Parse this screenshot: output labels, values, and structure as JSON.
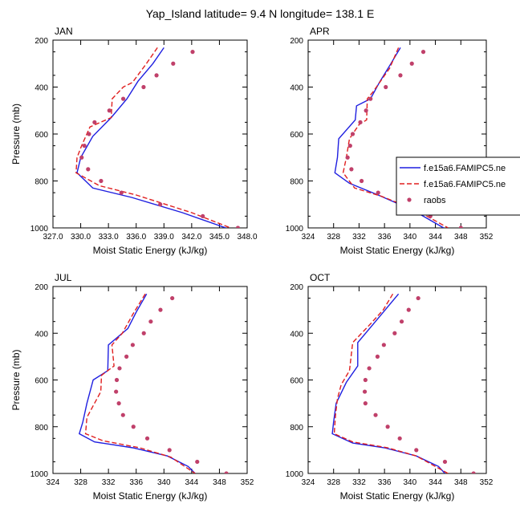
{
  "figure_title": "Yap_Island  latitude= 9.4 N longitude= 138.1 E",
  "legend": [
    {
      "label": "f.e15a6.FAMIPC5.ne",
      "color": "#1f1fe0",
      "style": "solid"
    },
    {
      "label": "f.e15a6.FAMIPC5.ne",
      "color": "#e01f1f",
      "style": "dashed"
    },
    {
      "label": "raobs",
      "color": "#c0406a",
      "style": "dots"
    }
  ],
  "colors": {
    "model1": "#1f1fe0",
    "model2": "#e01f1f",
    "obs": "#c0406a"
  },
  "chart_data": [
    {
      "type": "line",
      "title": "JAN",
      "xlabel": "Moist Static Energy (kJ/kg)",
      "ylabel": "Pressure (mb)",
      "xlim": [
        327,
        348
      ],
      "ylim": [
        200,
        1000
      ],
      "y_inverted": true,
      "xticks": [
        327,
        330,
        333,
        336,
        339,
        342,
        345,
        348
      ],
      "xtick_labels": [
        "327.0",
        "330.0",
        "333.0",
        "336.0",
        "339.0",
        "342.0",
        "345.0",
        "348.0"
      ],
      "yticks": [
        200,
        400,
        600,
        800,
        1000
      ],
      "ytick_labels": [
        "200",
        "400",
        "600",
        "800",
        "1000"
      ],
      "series": [
        {
          "name": "f.e15a6.FAMIPC5.ne",
          "style": "solid",
          "color": "#1f1fe0",
          "points": [
            [
              339.0,
              232
            ],
            [
              337.8,
              300
            ],
            [
              336.2,
              375
            ],
            [
              335.0,
              450
            ],
            [
              333.3,
              530
            ],
            [
              331.3,
              610
            ],
            [
              330.0,
              700
            ],
            [
              329.6,
              765
            ],
            [
              331.3,
              830
            ],
            [
              335.5,
              870
            ],
            [
              341.0,
              935
            ],
            [
              345.7,
              1000
            ]
          ]
        },
        {
          "name": "f.e15a6.FAMIPC5.ne",
          "style": "dashed",
          "color": "#e01f1f",
          "points": [
            [
              338.3,
              232
            ],
            [
              337.1,
              300
            ],
            [
              335.6,
              380
            ],
            [
              334.6,
              400
            ],
            [
              333.4,
              450
            ],
            [
              333.3,
              530
            ],
            [
              331.0,
              570
            ],
            [
              330.1,
              650
            ],
            [
              329.6,
              700
            ],
            [
              329.5,
              765
            ],
            [
              332.0,
              820
            ],
            [
              336.0,
              860
            ],
            [
              342.0,
              935
            ],
            [
              346.2,
              1000
            ]
          ]
        },
        {
          "name": "raobs",
          "style": "dots",
          "color": "#c0406a",
          "points": [
            [
              342.1,
              250
            ],
            [
              340.0,
              300
            ],
            [
              338.2,
              350
            ],
            [
              336.8,
              400
            ],
            [
              334.6,
              450
            ],
            [
              333.1,
              500
            ],
            [
              331.5,
              550
            ],
            [
              330.9,
              600
            ],
            [
              330.4,
              650
            ],
            [
              330.1,
              700
            ],
            [
              330.8,
              750
            ],
            [
              332.2,
              800
            ],
            [
              334.4,
              850
            ],
            [
              338.6,
              900
            ],
            [
              343.2,
              950
            ],
            [
              347.0,
              1000
            ]
          ]
        }
      ]
    },
    {
      "type": "line",
      "title": "APR",
      "xlabel": "Moist Static Energy (kJ/kg)",
      "ylabel": "Pressure (mb)",
      "xlim": [
        324,
        352
      ],
      "ylim": [
        200,
        1000
      ],
      "y_inverted": true,
      "xticks": [
        324,
        328,
        332,
        336,
        340,
        344,
        348,
        352
      ],
      "xtick_labels": [
        "324",
        "328",
        "332",
        "336",
        "340",
        "344",
        "348",
        "352"
      ],
      "yticks": [
        200,
        400,
        600,
        800,
        1000
      ],
      "ytick_labels": [
        "200",
        "400",
        "600",
        "800",
        "1000"
      ],
      "series": [
        {
          "name": "f.e15a6.FAMIPC5.ne",
          "style": "solid",
          "color": "#1f1fe0",
          "points": [
            [
              338.5,
              232
            ],
            [
              337.0,
              300
            ],
            [
              335.2,
              380
            ],
            [
              333.8,
              450
            ],
            [
              331.6,
              480
            ],
            [
              331.4,
              540
            ],
            [
              328.8,
              620
            ],
            [
              328.6,
              700
            ],
            [
              328.2,
              765
            ],
            [
              330.5,
              810
            ],
            [
              335.0,
              860
            ],
            [
              340.5,
              925
            ],
            [
              345.3,
              1000
            ]
          ]
        },
        {
          "name": "f.e15a6.FAMIPC5.ne",
          "style": "dashed",
          "color": "#e01f1f",
          "points": [
            [
              338.2,
              232
            ],
            [
              336.8,
              320
            ],
            [
              334.2,
              420
            ],
            [
              333.3,
              450
            ],
            [
              333.2,
              540
            ],
            [
              332.0,
              560
            ],
            [
              330.5,
              620
            ],
            [
              330.0,
              700
            ],
            [
              329.5,
              765
            ],
            [
              331.3,
              830
            ],
            [
              335.5,
              865
            ],
            [
              341.0,
              925
            ],
            [
              346.0,
              1000
            ]
          ]
        },
        {
          "name": "raobs",
          "style": "dots",
          "color": "#c0406a",
          "points": [
            [
              342.1,
              250
            ],
            [
              340.3,
              300
            ],
            [
              338.5,
              350
            ],
            [
              336.2,
              400
            ],
            [
              333.8,
              450
            ],
            [
              333.1,
              500
            ],
            [
              332.2,
              550
            ],
            [
              331.0,
              600
            ],
            [
              330.6,
              650
            ],
            [
              330.2,
              700
            ],
            [
              330.8,
              750
            ],
            [
              332.4,
              800
            ],
            [
              335.0,
              850
            ],
            [
              338.6,
              900
            ],
            [
              343.2,
              950
            ],
            [
              348.0,
              1000
            ]
          ]
        }
      ]
    },
    {
      "type": "line",
      "title": "JUL",
      "xlabel": "Moist Static Energy (kJ/kg)",
      "ylabel": "Pressure (mb)",
      "xlim": [
        324,
        352
      ],
      "ylim": [
        200,
        1000
      ],
      "y_inverted": true,
      "xticks": [
        324,
        328,
        332,
        336,
        340,
        344,
        348,
        352
      ],
      "xtick_labels": [
        "324",
        "328",
        "332",
        "336",
        "340",
        "344",
        "348",
        "352"
      ],
      "yticks": [
        200,
        400,
        600,
        800,
        1000
      ],
      "ytick_labels": [
        "200",
        "400",
        "600",
        "800",
        "1000"
      ],
      "series": [
        {
          "name": "f.e15a6.FAMIPC5.ne",
          "style": "solid",
          "color": "#1f1fe0",
          "points": [
            [
              337.5,
              232
            ],
            [
              336.0,
              310
            ],
            [
              334.8,
              380
            ],
            [
              332.0,
              450
            ],
            [
              331.9,
              560
            ],
            [
              329.8,
              600
            ],
            [
              328.9,
              700
            ],
            [
              328.3,
              780
            ],
            [
              327.8,
              830
            ],
            [
              330.0,
              865
            ],
            [
              335.5,
              890
            ],
            [
              340.5,
              925
            ],
            [
              343.5,
              970
            ],
            [
              344.5,
              1000
            ]
          ]
        },
        {
          "name": "f.e15a6.FAMIPC5.ne",
          "style": "dashed",
          "color": "#e01f1f",
          "points": [
            [
              337.3,
              232
            ],
            [
              335.5,
              320
            ],
            [
              334.0,
              400
            ],
            [
              332.5,
              450
            ],
            [
              332.8,
              540
            ],
            [
              331.0,
              580
            ],
            [
              330.9,
              650
            ],
            [
              328.9,
              760
            ],
            [
              328.7,
              830
            ],
            [
              331.2,
              860
            ],
            [
              336.5,
              890
            ],
            [
              341.0,
              930
            ],
            [
              344.5,
              1000
            ]
          ]
        },
        {
          "name": "raobs",
          "style": "dots",
          "color": "#c0406a",
          "points": [
            [
              341.2,
              250
            ],
            [
              339.5,
              300
            ],
            [
              338.1,
              350
            ],
            [
              337.1,
              400
            ],
            [
              335.5,
              450
            ],
            [
              334.6,
              500
            ],
            [
              333.6,
              550
            ],
            [
              333.2,
              600
            ],
            [
              333.1,
              650
            ],
            [
              333.5,
              700
            ],
            [
              334.1,
              750
            ],
            [
              335.6,
              800
            ],
            [
              337.6,
              850
            ],
            [
              340.8,
              900
            ],
            [
              344.8,
              950
            ],
            [
              349.0,
              1000
            ]
          ]
        }
      ]
    },
    {
      "type": "line",
      "title": "OCT",
      "xlabel": "Moist Static Energy (kJ/kg)",
      "ylabel": "Pressure (mb)",
      "xlim": [
        324,
        352
      ],
      "ylim": [
        200,
        1000
      ],
      "y_inverted": true,
      "xticks": [
        324,
        328,
        332,
        336,
        340,
        344,
        348,
        352
      ],
      "xtick_labels": [
        "324",
        "328",
        "332",
        "336",
        "340",
        "344",
        "348",
        "352"
      ],
      "yticks": [
        200,
        400,
        600,
        800,
        1000
      ],
      "ytick_labels": [
        "200",
        "400",
        "600",
        "800",
        "1000"
      ],
      "series": [
        {
          "name": "f.e15a6.FAMIPC5.ne",
          "style": "solid",
          "color": "#1f1fe0",
          "points": [
            [
              338.2,
              232
            ],
            [
              335.5,
              320
            ],
            [
              331.8,
              440
            ],
            [
              331.8,
              540
            ],
            [
              330.0,
              610
            ],
            [
              328.4,
              700
            ],
            [
              328.0,
              780
            ],
            [
              327.8,
              830
            ],
            [
              331.0,
              870
            ],
            [
              336.0,
              890
            ],
            [
              341.0,
              925
            ],
            [
              344.5,
              970
            ],
            [
              345.5,
              1000
            ]
          ]
        },
        {
          "name": "f.e15a6.FAMIPC5.ne",
          "style": "dashed",
          "color": "#e01f1f",
          "points": [
            [
              337.3,
              232
            ],
            [
              335.8,
              300
            ],
            [
              333.8,
              360
            ],
            [
              331.0,
              440
            ],
            [
              330.5,
              560
            ],
            [
              329.2,
              620
            ],
            [
              328.6,
              680
            ],
            [
              328.3,
              750
            ],
            [
              328.1,
              830
            ],
            [
              331.0,
              865
            ],
            [
              336.5,
              890
            ],
            [
              341.0,
              925
            ],
            [
              346.0,
              1000
            ]
          ]
        },
        {
          "name": "raobs",
          "style": "dots",
          "color": "#c0406a",
          "points": [
            [
              341.3,
              250
            ],
            [
              339.8,
              300
            ],
            [
              338.7,
              350
            ],
            [
              337.6,
              400
            ],
            [
              335.9,
              450
            ],
            [
              334.9,
              500
            ],
            [
              333.6,
              550
            ],
            [
              333.0,
              600
            ],
            [
              332.9,
              650
            ],
            [
              333.0,
              700
            ],
            [
              334.6,
              750
            ],
            [
              336.5,
              800
            ],
            [
              338.4,
              850
            ],
            [
              341.0,
              900
            ],
            [
              345.5,
              950
            ],
            [
              350.0,
              1000
            ]
          ]
        }
      ]
    }
  ]
}
